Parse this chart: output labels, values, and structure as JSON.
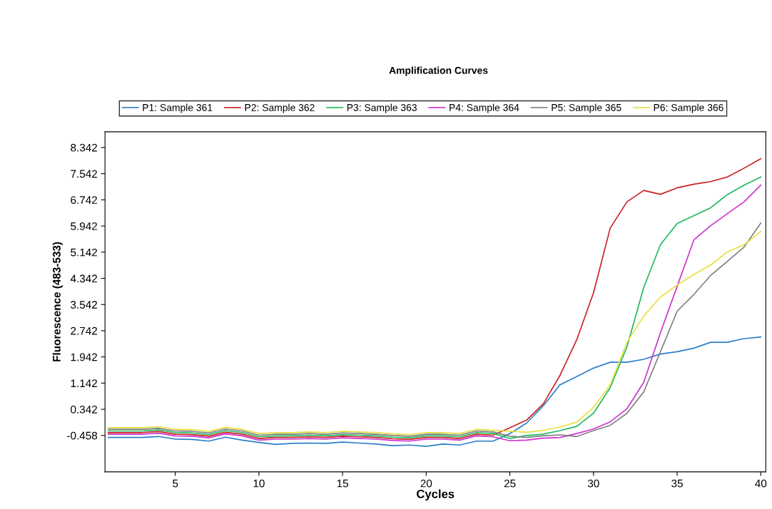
{
  "chart_data": {
    "type": "line",
    "title": "Amplification Curves",
    "xlabel": "Cycles",
    "ylabel": "Fluorescence (483-533)",
    "x": [
      1,
      2,
      3,
      4,
      5,
      6,
      7,
      8,
      9,
      10,
      11,
      12,
      13,
      14,
      15,
      16,
      17,
      18,
      19,
      20,
      21,
      22,
      23,
      24,
      25,
      26,
      27,
      28,
      29,
      30,
      31,
      32,
      33,
      34,
      35,
      36,
      37,
      38,
      39,
      40
    ],
    "xlim": [
      0.8,
      40.3
    ],
    "xticks": [
      5,
      10,
      15,
      20,
      25,
      30,
      35,
      40
    ],
    "ylim": [
      -1.57,
      8.82
    ],
    "yticks": [
      {
        "value": -0.458,
        "label": "-0.458"
      },
      {
        "value": 0.342,
        "label": "0.342"
      },
      {
        "value": 1.142,
        "label": "1.142"
      },
      {
        "value": 1.942,
        "label": "1.942"
      },
      {
        "value": 2.742,
        "label": "2.742"
      },
      {
        "value": 3.542,
        "label": "3.542"
      },
      {
        "value": 4.342,
        "label": "4.342"
      },
      {
        "value": 5.142,
        "label": "5.142"
      },
      {
        "value": 5.942,
        "label": "5.942"
      },
      {
        "value": 6.742,
        "label": "6.742"
      },
      {
        "value": 7.542,
        "label": "7.542"
      },
      {
        "value": 8.342,
        "label": "8.342"
      }
    ],
    "grid": false,
    "legend": "top",
    "marker": "none",
    "line_style": "solid",
    "series": [
      {
        "name": "P1: Sample 361",
        "color": "#2a7fc9",
        "values": [
          -0.52,
          -0.52,
          -0.52,
          -0.49,
          -0.57,
          -0.58,
          -0.63,
          -0.51,
          -0.6,
          -0.67,
          -0.73,
          -0.7,
          -0.69,
          -0.7,
          -0.66,
          -0.69,
          -0.72,
          -0.77,
          -0.75,
          -0.79,
          -0.72,
          -0.75,
          -0.63,
          -0.63,
          -0.4,
          -0.08,
          0.45,
          1.09,
          1.34,
          1.6,
          1.78,
          1.78,
          1.87,
          2.03,
          2.1,
          2.21,
          2.39,
          2.39,
          2.5,
          2.55
        ]
      },
      {
        "name": "P2: Sample 362",
        "color": "#cc2020",
        "values": [
          -0.37,
          -0.37,
          -0.37,
          -0.34,
          -0.42,
          -0.43,
          -0.48,
          -0.36,
          -0.42,
          -0.55,
          -0.52,
          -0.52,
          -0.5,
          -0.52,
          -0.48,
          -0.5,
          -0.52,
          -0.56,
          -0.58,
          -0.52,
          -0.52,
          -0.55,
          -0.42,
          -0.45,
          -0.22,
          0.01,
          0.51,
          1.38,
          2.47,
          3.9,
          5.88,
          6.68,
          7.03,
          6.91,
          7.11,
          7.22,
          7.3,
          7.44,
          7.71,
          8.0
        ]
      },
      {
        "name": "P3: Sample 363",
        "color": "#20b860",
        "values": [
          -0.32,
          -0.32,
          -0.32,
          -0.29,
          -0.37,
          -0.38,
          -0.43,
          -0.31,
          -0.37,
          -0.5,
          -0.47,
          -0.47,
          -0.45,
          -0.47,
          -0.43,
          -0.45,
          -0.47,
          -0.51,
          -0.53,
          -0.47,
          -0.47,
          -0.5,
          -0.37,
          -0.4,
          -0.55,
          -0.46,
          -0.42,
          -0.31,
          -0.18,
          0.22,
          1.01,
          2.25,
          4.06,
          5.37,
          6.02,
          6.26,
          6.5,
          6.9,
          7.19,
          7.44
        ]
      },
      {
        "name": "P4: Sample 364",
        "color": "#cc33cc",
        "values": [
          -0.42,
          -0.42,
          -0.42,
          -0.39,
          -0.47,
          -0.48,
          -0.53,
          -0.41,
          -0.47,
          -0.6,
          -0.57,
          -0.57,
          -0.55,
          -0.57,
          -0.53,
          -0.55,
          -0.57,
          -0.61,
          -0.63,
          -0.57,
          -0.57,
          -0.6,
          -0.47,
          -0.5,
          -0.62,
          -0.6,
          -0.54,
          -0.52,
          -0.4,
          -0.26,
          -0.04,
          0.36,
          1.16,
          2.68,
          4.1,
          5.52,
          5.95,
          6.32,
          6.68,
          7.19
        ]
      },
      {
        "name": "P5: Sample 365",
        "color": "#808080",
        "values": [
          -0.27,
          -0.27,
          -0.27,
          -0.24,
          -0.32,
          -0.33,
          -0.38,
          -0.26,
          -0.32,
          -0.45,
          -0.42,
          -0.42,
          -0.4,
          -0.42,
          -0.38,
          -0.4,
          -0.42,
          -0.46,
          -0.48,
          -0.42,
          -0.42,
          -0.45,
          -0.32,
          -0.35,
          -0.48,
          -0.52,
          -0.47,
          -0.44,
          -0.49,
          -0.31,
          -0.15,
          0.22,
          0.87,
          2.1,
          3.34,
          3.85,
          4.43,
          4.86,
          5.3,
          6.03
        ]
      },
      {
        "name": "P6: Sample 366",
        "color": "#e8e040",
        "values": [
          -0.22,
          -0.22,
          -0.22,
          -0.19,
          -0.27,
          -0.28,
          -0.33,
          -0.21,
          -0.27,
          -0.4,
          -0.37,
          -0.37,
          -0.35,
          -0.37,
          -0.33,
          -0.35,
          -0.37,
          -0.41,
          -0.43,
          -0.37,
          -0.37,
          -0.4,
          -0.27,
          -0.3,
          -0.33,
          -0.36,
          -0.3,
          -0.2,
          -0.05,
          0.4,
          1.09,
          2.39,
          3.19,
          3.77,
          4.14,
          4.46,
          4.75,
          5.15,
          5.37,
          5.77
        ]
      }
    ]
  }
}
